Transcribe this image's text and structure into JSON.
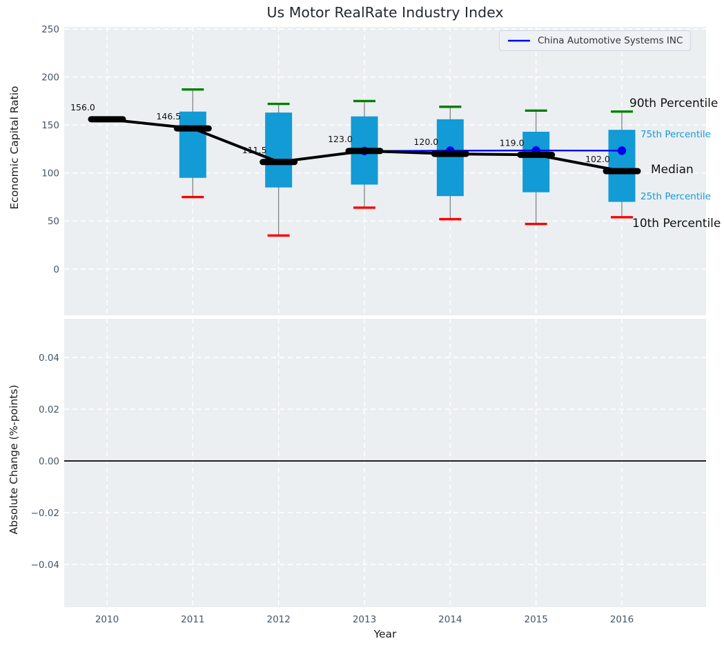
{
  "chart_data": {
    "type": "box",
    "title": "Us Motor RealRate Industry Index",
    "xlabel": "Year",
    "categories": [
      2010,
      2011,
      2012,
      2013,
      2014,
      2015,
      2016
    ],
    "grid": "white-dashed",
    "legend_position": "upper right",
    "top_panel": {
      "ylabel": "Economic Capital Ratio",
      "yticks": [
        0,
        50,
        100,
        150,
        200,
        250
      ],
      "ylim": [
        -49,
        253
      ],
      "series": {
        "median": [
          156.0,
          146.5,
          111.5,
          123.0,
          120.0,
          119.0,
          102.0
        ],
        "p25": [
          null,
          95,
          85,
          88,
          76,
          80,
          70
        ],
        "p75": [
          null,
          164,
          163,
          159,
          156,
          143,
          145
        ],
        "p10": [
          null,
          75,
          35,
          64,
          52,
          47,
          54
        ],
        "p90": [
          null,
          187,
          172,
          175,
          169,
          165,
          164
        ]
      },
      "median_labels": [
        "156.0",
        "146.5",
        "111.5",
        "123.0",
        "120.0",
        "119.0",
        "102.0"
      ],
      "company_line": {
        "name": "China Automotive Systems INC",
        "x": [
          2013,
          2014,
          2015,
          2016
        ],
        "y": [
          123.0,
          123.3,
          123.5,
          123.3
        ]
      },
      "percentile_labels": [
        "90th Percentile",
        "75th Percentile",
        "Median",
        "25th Percentile",
        "10th Percentile"
      ]
    },
    "bottom_panel": {
      "ylabel": "Absolute Change (%-points)",
      "yticks": [
        0.04,
        0.02,
        0.0,
        -0.02,
        -0.04
      ],
      "ylim": [
        -0.055,
        0.055
      ],
      "zero_line": 0.0
    },
    "colors": {
      "box": "#129bd5",
      "whisker": "#7a7a7a",
      "cap_top": "#008000",
      "cap_bottom": "#fb0000",
      "median": "#000000",
      "company": "#0000ee",
      "grid": "#ffffff",
      "plot_bg": "#ebeff1",
      "tick": "#44546b"
    }
  }
}
